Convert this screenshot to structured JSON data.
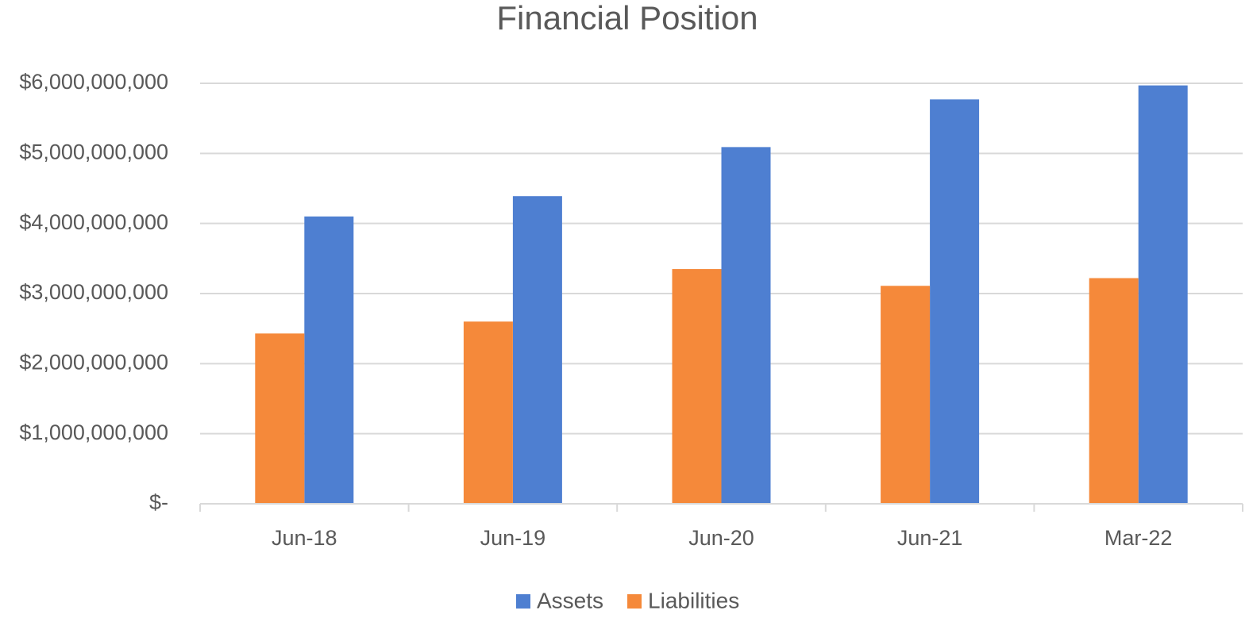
{
  "chart_data": {
    "type": "bar",
    "title": "Financial Position",
    "categories": [
      "Jun-18",
      "Jun-19",
      "Jun-20",
      "Jun-21",
      "Mar-22"
    ],
    "series": [
      {
        "name": "Assets",
        "color": "#4e7fd1",
        "values": [
          4100000000,
          4390000000,
          5090000000,
          5770000000,
          5970000000
        ]
      },
      {
        "name": "Liabilities",
        "color": "#f5893a",
        "values": [
          2430000000,
          2600000000,
          3350000000,
          3110000000,
          3220000000
        ]
      }
    ],
    "ylim": [
      0,
      6000000000
    ],
    "yticks": [
      {
        "value": 0,
        "label": "$-"
      },
      {
        "value": 1000000000,
        "label": "$1,000,000,000"
      },
      {
        "value": 2000000000,
        "label": "$2,000,000,000"
      },
      {
        "value": 3000000000,
        "label": "$3,000,000,000"
      },
      {
        "value": 4000000000,
        "label": "$4,000,000,000"
      },
      {
        "value": 5000000000,
        "label": "$5,000,000,000"
      },
      {
        "value": 6000000000,
        "label": "$6,000,000,000"
      }
    ],
    "grid": true,
    "legend": "bottom"
  }
}
